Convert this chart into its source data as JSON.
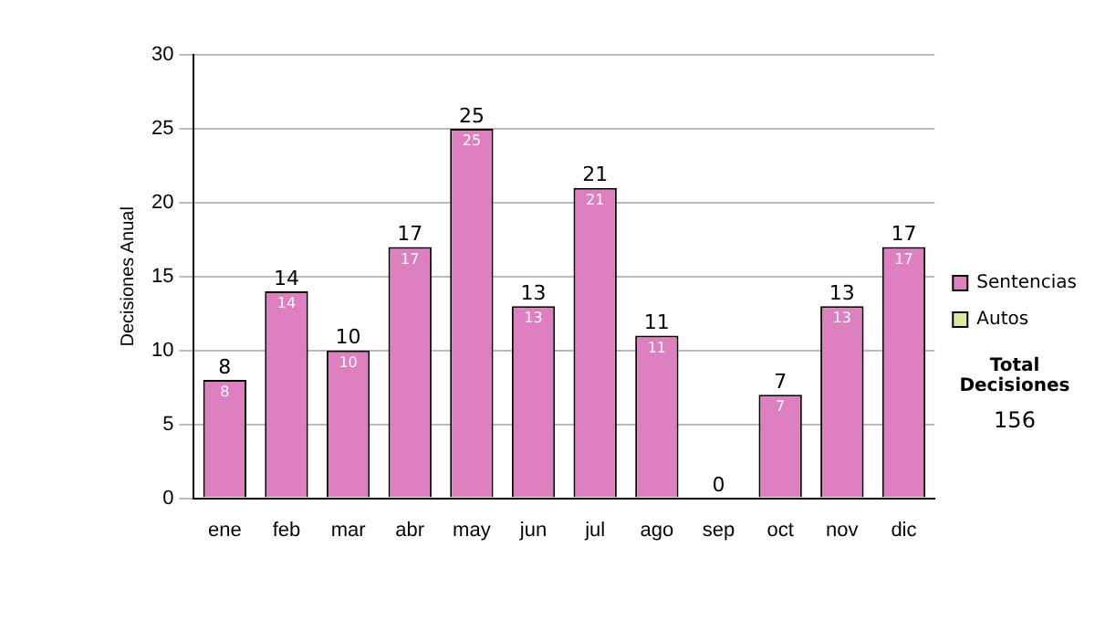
{
  "chart_data": {
    "type": "bar",
    "stacked": true,
    "ylabel": "Decisiones Anual",
    "categories": [
      "ene",
      "feb",
      "mar",
      "abr",
      "may",
      "jun",
      "jul",
      "ago",
      "sep",
      "oct",
      "nov",
      "dic"
    ],
    "series": [
      {
        "name": "Sentencias",
        "color": "#de7fc0",
        "values": [
          8,
          14,
          10,
          17,
          25,
          13,
          21,
          11,
          0,
          7,
          13,
          17
        ],
        "value_labels": [
          "8",
          "14",
          "10",
          "17",
          "25",
          "13",
          "21",
          "11",
          null,
          "7",
          "13",
          "17"
        ]
      },
      {
        "name": "Autos",
        "color": "#d8ec9c",
        "values": [
          0,
          0,
          0,
          0,
          0,
          0,
          0,
          0,
          0,
          0,
          0,
          0
        ]
      }
    ],
    "totals": [
      "8",
      "14",
      "10",
      "17",
      "25",
      "13",
      "21",
      "11",
      "0",
      "7",
      "13",
      "17"
    ],
    "ylim": [
      0,
      30
    ],
    "yticks": [
      0,
      5,
      10,
      15,
      20,
      25,
      30
    ],
    "grid": "y",
    "legend": "right",
    "annotations": [
      "Total Decisiones",
      "156"
    ]
  }
}
